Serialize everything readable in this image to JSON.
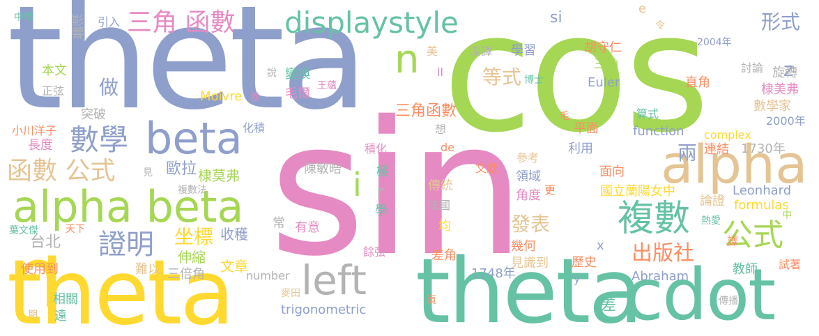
{
  "words": [
    {
      "text": "sin",
      "color": "#e68ac3"
    },
    {
      "text": "theta",
      "color": "#8f9fcb"
    },
    {
      "text": "cos",
      "color": "#a6d754"
    },
    {
      "text": "theta",
      "color": "#ffd92f"
    },
    {
      "text": "theta",
      "color": "#66c2a5"
    },
    {
      "text": "cdot",
      "color": "#66c2a5"
    },
    {
      "text": "alpha beta",
      "color": "#a6d754"
    },
    {
      "text": "alpha",
      "color": "#e5c494"
    },
    {
      "text": "beta",
      "color": "#8f9fcb"
    },
    {
      "text": "displaystyle",
      "color": "#66c2a5"
    },
    {
      "text": "left",
      "color": "#b3b3b3"
    },
    {
      "text": "複數",
      "color": "#66c2a5"
    },
    {
      "text": "公式",
      "color": "#a6d754"
    },
    {
      "text": "三角 函數",
      "color": "#e68ac3"
    },
    {
      "text": "數學",
      "color": "#8f9fcb"
    },
    {
      "text": "函數 公式",
      "color": "#e5c494"
    },
    {
      "text": "證明",
      "color": "#8f9fcb"
    },
    {
      "text": "坐標",
      "color": "#ffd92f"
    },
    {
      "text": "n",
      "color": "#ffd92f"
    },
    {
      "text": "n",
      "color": "#a6d754"
    },
    {
      "text": "i",
      "color": "#a6d754"
    },
    {
      "text": "r",
      "color": "#b3b3b3"
    },
    {
      "text": "形式",
      "color": "#8f9fcb"
    },
    {
      "text": "z",
      "color": "#8f9fcb"
    },
    {
      "text": "做",
      "color": "#8f9fcb"
    },
    {
      "text": "等式",
      "color": "#e5c494"
    },
    {
      "text": "兩",
      "color": "#8f9fcb"
    },
    {
      "text": "發表",
      "color": "#e5c494"
    },
    {
      "text": "出版社",
      "color": "#fc8d62"
    },
    {
      "text": "三角函數",
      "color": "#fc8d62"
    },
    {
      "text": "歐拉",
      "color": "#8f9fcb"
    },
    {
      "text": "台北",
      "color": "#b3b3b3"
    },
    {
      "text": "收穫",
      "color": "#8f9fcb"
    },
    {
      "text": "伸縮",
      "color": "#a6d754"
    },
    {
      "text": "文章",
      "color": "#ffd92f"
    },
    {
      "text": "棣莫弗",
      "color": "#a6d754"
    },
    {
      "text": "陳敏晧",
      "color": "#b3b3b3"
    },
    {
      "text": "極",
      "color": "#66c2a5"
    },
    {
      "text": "學",
      "color": "#66c2a5"
    },
    {
      "text": "傳統",
      "color": "#e5c494"
    },
    {
      "text": "領域",
      "color": "#8f9fcb"
    },
    {
      "text": "角度",
      "color": "#e68ac3"
    },
    {
      "text": "更",
      "color": "#fc8d62"
    },
    {
      "text": "文獻",
      "color": "#fc8d62"
    },
    {
      "text": "參考",
      "color": "#e5c494"
    },
    {
      "text": "法國",
      "color": "#b3b3b3"
    },
    {
      "text": "均",
      "color": "#ffd92f"
    },
    {
      "text": "有意",
      "color": "#e68ac3"
    },
    {
      "text": "常",
      "color": "#b3b3b3"
    },
    {
      "text": "餘弦",
      "color": "#e68ac3"
    },
    {
      "text": "差角",
      "color": "#fc8d62"
    },
    {
      "text": "幾何",
      "color": "#fc8d62"
    },
    {
      "text": "見識到",
      "color": "#e5c494"
    },
    {
      "text": "1748年",
      "color": "#8f9fcb"
    },
    {
      "text": "number",
      "color": "#b3b3b3"
    },
    {
      "text": "trigonometric",
      "color": "#8f9fcb"
    },
    {
      "text": "麥田",
      "color": "#e5c494"
    },
    {
      "text": "頁",
      "color": "#fc8d62"
    },
    {
      "text": "Abraham",
      "color": "#8f9fcb"
    },
    {
      "text": "歷史",
      "color": "#fc8d62"
    },
    {
      "text": "x",
      "color": "#8f9fcb"
    },
    {
      "text": "y",
      "color": "#8f9fcb"
    },
    {
      "text": "差",
      "color": "#66c2a5"
    },
    {
      "text": "教師",
      "color": "#66c2a5"
    },
    {
      "text": "試著",
      "color": "#fc8d62"
    },
    {
      "text": "傳播",
      "color": "#b3b3b3"
    },
    {
      "text": "譯",
      "color": "#fc8d62"
    },
    {
      "text": "熱愛",
      "color": "#66c2a5"
    },
    {
      "text": "中",
      "color": "#a6d754"
    },
    {
      "text": "formulas",
      "color": "#ffd92f"
    },
    {
      "text": "論證",
      "color": "#e5c494"
    },
    {
      "text": "Leonhard",
      "color": "#8f9fcb"
    },
    {
      "text": "國立蘭陽女中",
      "color": "#ffd92f"
    },
    {
      "text": "面向",
      "color": "#fc8d62"
    },
    {
      "text": "利用",
      "color": "#8f9fcb"
    },
    {
      "text": "連結",
      "color": "#fc8d62"
    },
    {
      "text": "1730年",
      "color": "#b3b3b3"
    },
    {
      "text": "complex",
      "color": "#ffd92f"
    },
    {
      "text": "function",
      "color": "#8f9fcb"
    },
    {
      "text": "平面",
      "color": "#fc8d62"
    },
    {
      "text": "算式",
      "color": "#66c2a5"
    },
    {
      "text": "2000年",
      "color": "#8f9fcb"
    },
    {
      "text": "數學家",
      "color": "#e5c494"
    },
    {
      "text": "棣美弗",
      "color": "#e68ac3"
    },
    {
      "text": "旋轉",
      "color": "#b3b3b3"
    },
    {
      "text": "直角",
      "color": "#fc8d62"
    },
    {
      "text": "討論",
      "color": "#b3b3b3"
    },
    {
      "text": "2004年",
      "color": "#8f9fcb"
    },
    {
      "text": "令",
      "color": "#e5c494"
    },
    {
      "text": "e",
      "color": "#e5c494"
    },
    {
      "text": "si",
      "color": "#8f9fcb"
    },
    {
      "text": "胡守仁",
      "color": "#fc8d62"
    },
    {
      "text": "三角",
      "color": "#a6d754"
    },
    {
      "text": "Euler",
      "color": "#8f9fcb"
    },
    {
      "text": "博士",
      "color": "#66c2a5"
    },
    {
      "text": "潔譯",
      "color": "#b3b3b3"
    },
    {
      "text": "學習",
      "color": "#8f9fcb"
    },
    {
      "text": "毛",
      "color": "#fc8d62"
    },
    {
      "text": "美",
      "color": "#e5c494"
    },
    {
      "text": "ll",
      "color": "#e68ac3"
    },
    {
      "text": "變換",
      "color": "#66c2a5"
    },
    {
      "text": "毛爾",
      "color": "#e68ac3"
    },
    {
      "text": "Moivre",
      "color": "#ffd92f"
    },
    {
      "text": "卷",
      "color": "#e68ac3"
    },
    {
      "text": "說",
      "color": "#b3b3b3"
    },
    {
      "text": "王蘊",
      "color": "#e68ac3"
    },
    {
      "text": "想",
      "color": "#b3b3b3"
    },
    {
      "text": "積化",
      "color": "#e68ac3"
    },
    {
      "text": "de",
      "color": "#fc8d62"
    },
    {
      "text": "突破",
      "color": "#b3b3b3"
    },
    {
      "text": "化積",
      "color": "#8f9fcb"
    },
    {
      "text": "見",
      "color": "#b3b3b3"
    },
    {
      "text": "複數法",
      "color": "#b3b3b3"
    },
    {
      "text": "三倍角",
      "color": "#b3b3b3"
    },
    {
      "text": "難以",
      "color": "#e5c494"
    },
    {
      "text": "正弦",
      "color": "#b3b3b3"
    },
    {
      "text": "本文",
      "color": "#a6d754"
    },
    {
      "text": "影響",
      "color": "#b3b3b3"
    },
    {
      "text": "引入",
      "color": "#8f9fcb"
    },
    {
      "text": "中學",
      "color": "#66c2a5"
    },
    {
      "text": "小川洋子",
      "color": "#fc8d62"
    },
    {
      "text": "長度",
      "color": "#e68ac3"
    },
    {
      "text": "葉文傑",
      "color": "#66c2a5"
    },
    {
      "text": "天下",
      "color": "#fc8d62"
    },
    {
      "text": "使用到",
      "color": "#fc8d62"
    },
    {
      "text": "相關",
      "color": "#66c2a5"
    },
    {
      "text": "遠",
      "color": "#66c2a5"
    },
    {
      "text": "期",
      "color": "#e5c494"
    }
  ]
}
